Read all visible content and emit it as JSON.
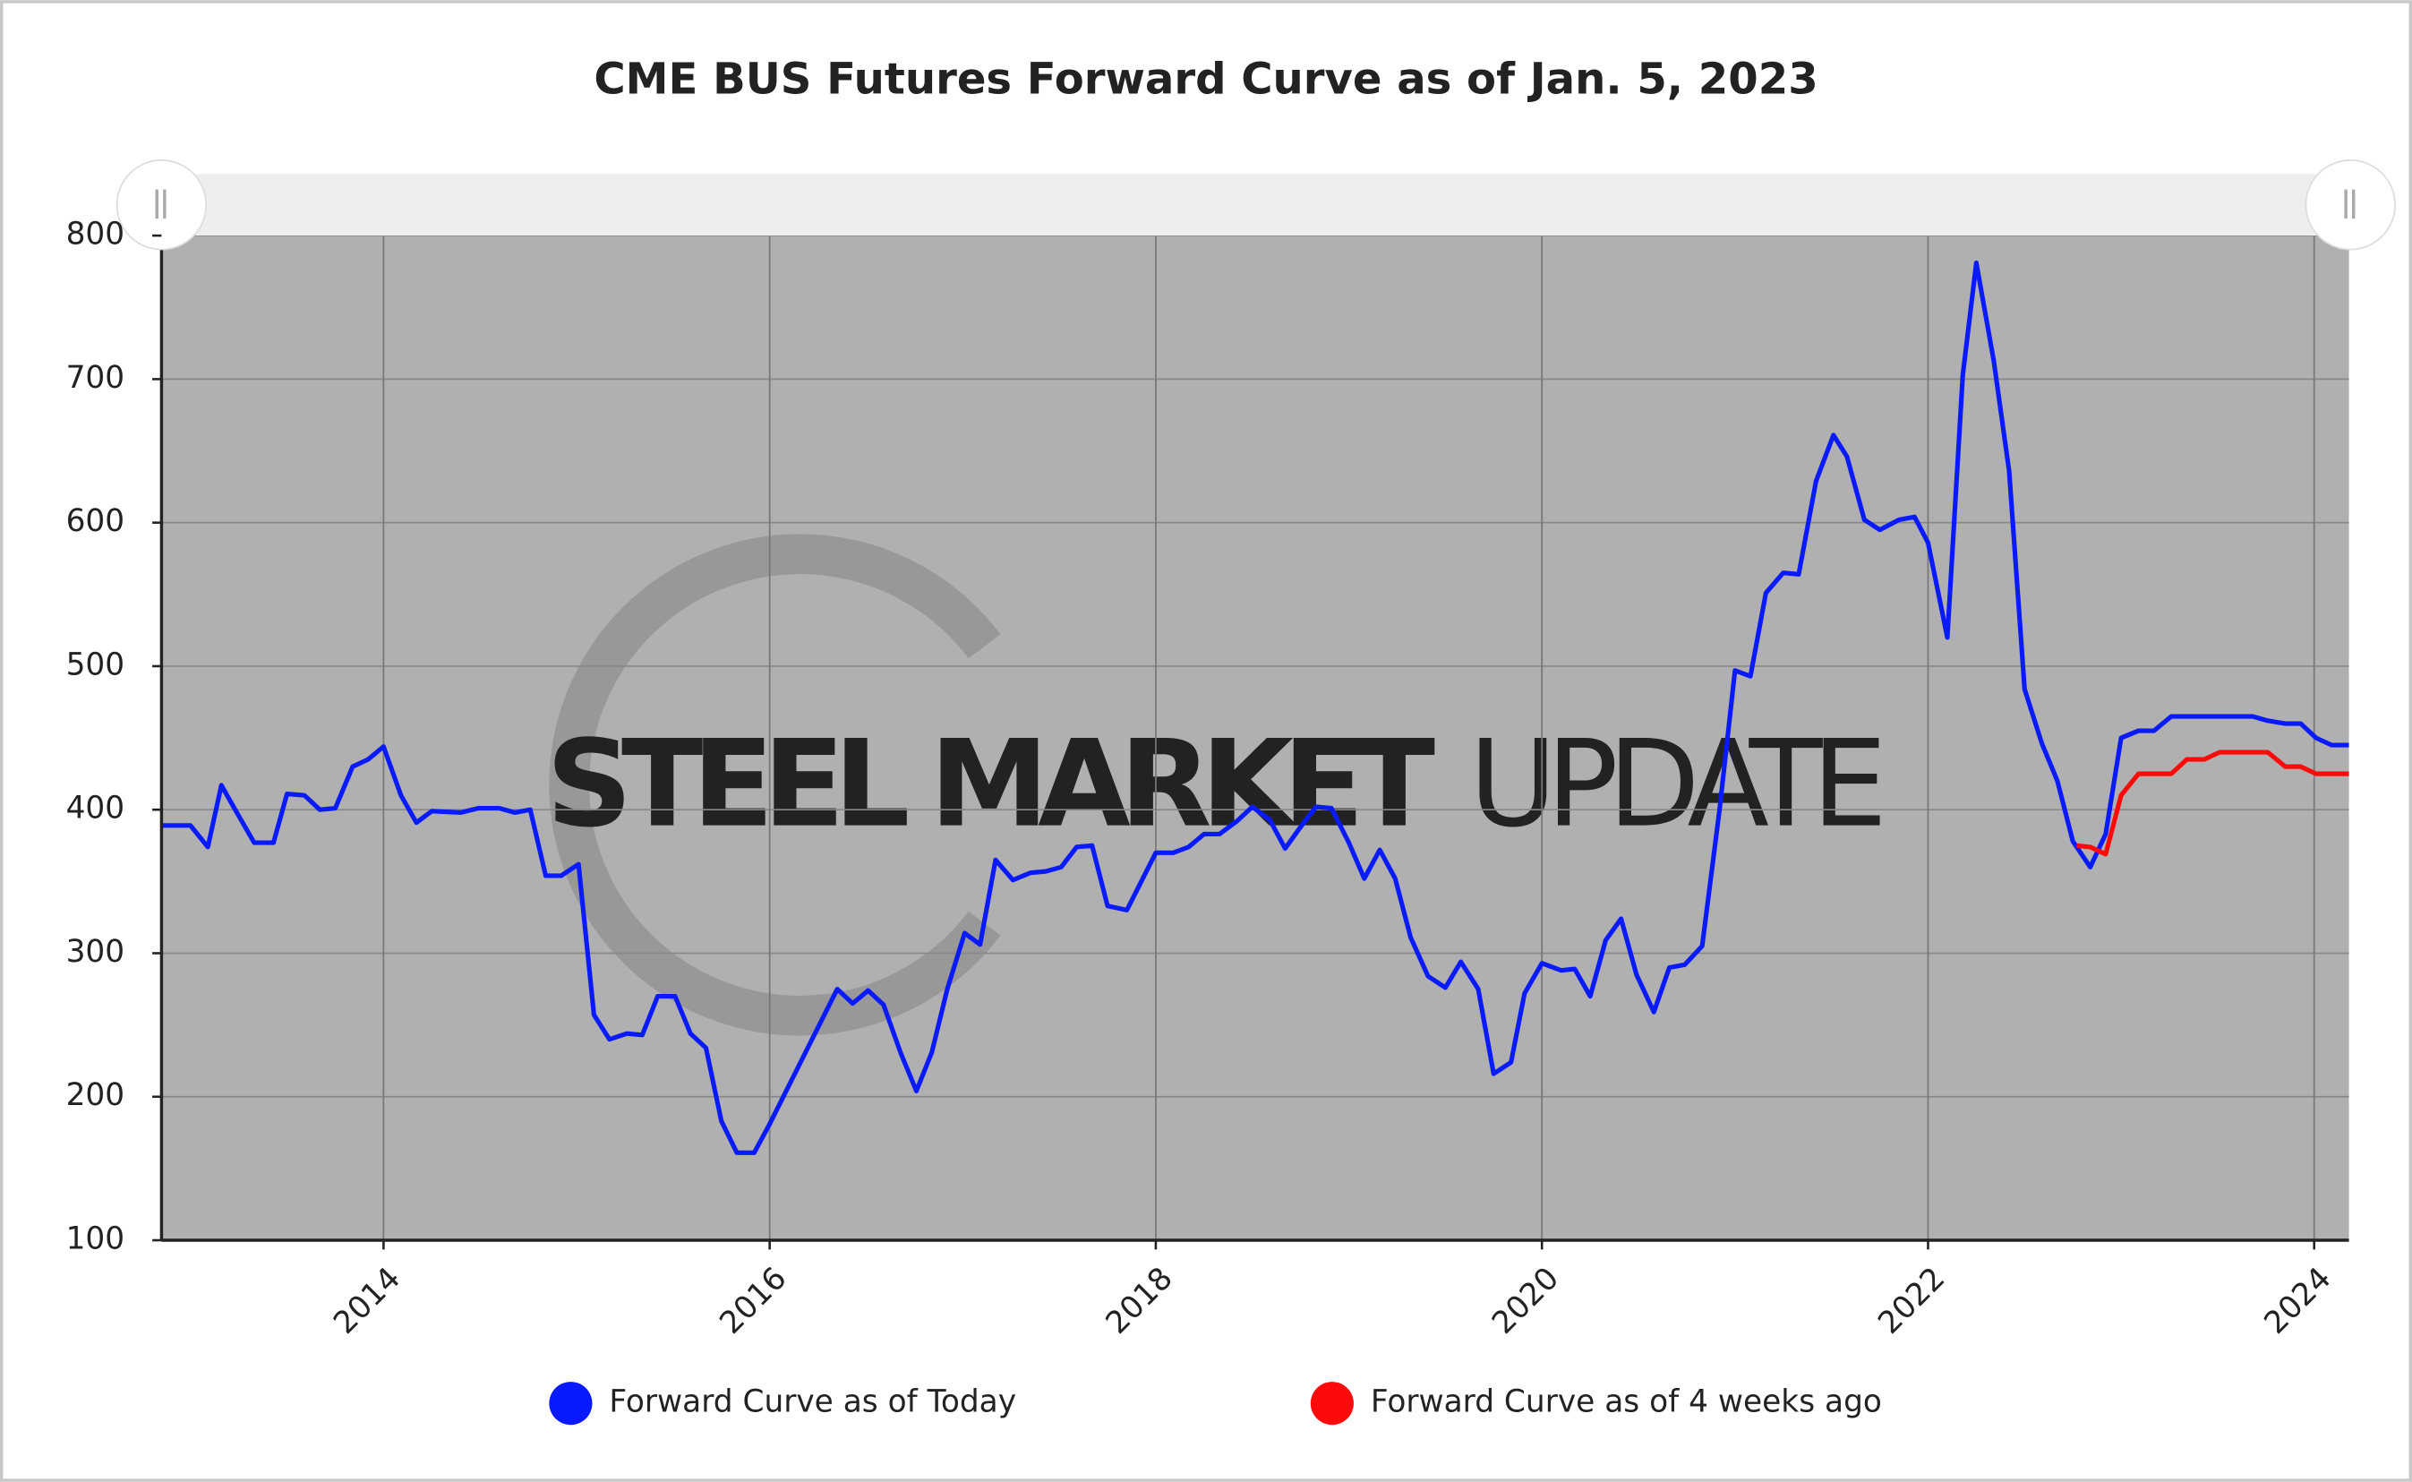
{
  "chart_data": {
    "type": "line",
    "title": "CME BUS Futures Forward Curve as of Jan. 5, 2023",
    "watermark": [
      "STEEL MARKET",
      "UPDATE"
    ],
    "xlim": [
      2012.85,
      2024.18
    ],
    "xticks": [
      2014,
      2016,
      2018,
      2020,
      2022,
      2024
    ],
    "ylim": [
      100,
      800
    ],
    "yticks": [
      100,
      200,
      300,
      400,
      500,
      600,
      700,
      800
    ],
    "grid": true,
    "legend": "bottom",
    "series": [
      {
        "name": "Forward Curve as of Today",
        "color": "#0a1aff",
        "x": [
          2012.85,
          2013.0,
          2013.09,
          2013.16,
          2013.24,
          2013.33,
          2013.43,
          2013.5,
          2013.59,
          2013.67,
          2013.75,
          2013.84,
          2013.92,
          2014.0,
          2014.09,
          2014.17,
          2014.25,
          2014.4,
          2014.49,
          2014.6,
          2014.68,
          2014.76,
          2014.84,
          2014.92,
          2015.01,
          2015.09,
          2015.17,
          2015.26,
          2015.34,
          2015.42,
          2015.51,
          2015.59,
          2015.67,
          2015.75,
          2015.83,
          2015.92,
          2016.0,
          2016.35,
          2016.43,
          2016.51,
          2016.59,
          2016.68,
          2016.76,
          2016.84,
          2016.92,
          2017.01,
          2017.09,
          2017.17,
          2017.26,
          2017.35,
          2017.43,
          2017.51,
          2017.59,
          2017.67,
          2017.75,
          2017.85,
          2018.0,
          2018.09,
          2018.17,
          2018.25,
          2018.33,
          2018.42,
          2018.5,
          2018.59,
          2018.67,
          2018.75,
          2018.83,
          2018.91,
          2019.0,
          2019.08,
          2019.16,
          2019.24,
          2019.32,
          2019.41,
          2019.5,
          2019.58,
          2019.67,
          2019.75,
          2019.84,
          2019.91,
          2020.0,
          2020.1,
          2020.17,
          2020.25,
          2020.33,
          2020.41,
          2020.49,
          2020.58,
          2020.66,
          2020.74,
          2020.83,
          2020.92,
          2021.0,
          2021.08,
          2021.16,
          2021.25,
          2021.33,
          2021.42,
          2021.51,
          2021.58,
          2021.67,
          2021.75,
          2021.85,
          2021.93,
          2022.0,
          2022.1,
          2022.18,
          2022.25,
          2022.34,
          2022.42,
          2022.5,
          2022.59,
          2022.67,
          2022.75,
          2022.84,
          2022.92,
          2023.0,
          2023.09,
          2023.17,
          2023.26,
          2023.68,
          2023.76,
          2023.85,
          2023.93,
          2024.01,
          2024.09,
          2024.18
        ],
        "values": [
          389,
          389,
          374,
          417,
          398,
          377,
          377,
          411,
          410,
          400,
          401,
          430,
          435,
          444,
          410,
          391,
          399,
          398,
          401,
          401,
          398,
          400,
          354,
          354,
          362,
          257,
          240,
          244,
          243,
          270,
          270,
          244,
          234,
          183,
          161,
          161,
          181,
          275,
          265,
          274,
          264,
          230,
          204,
          231,
          275,
          314,
          306,
          365,
          351,
          356,
          357,
          360,
          374,
          375,
          333,
          330,
          370,
          370,
          374,
          383,
          383,
          392,
          402,
          393,
          373,
          388,
          402,
          401,
          377,
          352,
          372,
          352,
          311,
          284,
          276,
          294,
          275,
          216,
          224,
          272,
          293,
          288,
          289,
          270,
          309,
          324,
          285,
          259,
          290,
          292,
          305,
          400,
          497,
          493,
          551,
          565,
          564,
          629,
          661,
          646,
          602,
          595,
          602,
          604,
          586,
          520,
          703,
          781,
          713,
          636,
          484,
          446,
          420,
          378,
          360,
          383,
          450,
          455,
          455,
          465,
          465,
          462,
          460,
          460,
          450,
          445,
          445
        ]
      },
      {
        "name": "Forward Curve as of 4 weeks ago",
        "color": "#ff0a0a",
        "x": [
          2022.77,
          2022.84,
          2022.92,
          2023.0,
          2023.09,
          2023.26,
          2023.34,
          2023.43,
          2023.51,
          2023.76,
          2023.85,
          2023.93,
          2024.01,
          2024.18
        ],
        "values": [
          375,
          374,
          369,
          410,
          425,
          425,
          435,
          435,
          440,
          440,
          430,
          430,
          425,
          425
        ]
      }
    ]
  }
}
